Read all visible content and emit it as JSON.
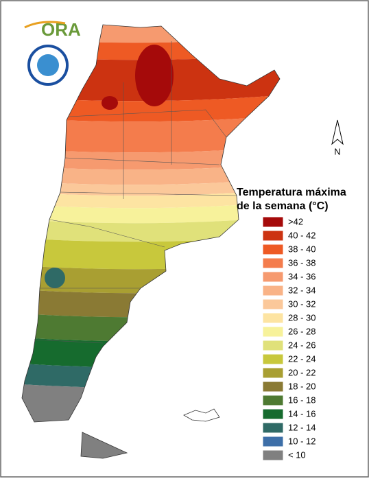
{
  "logo": {
    "text": "ORA"
  },
  "north": "N",
  "legend": {
    "title": [
      "Temperatura máxima",
      "de la semana (°C)"
    ],
    "items": [
      {
        "label": ">42",
        "color": "#a50a0a"
      },
      {
        "label": "40 - 42",
        "color": "#cc3311"
      },
      {
        "label": "38 - 40",
        "color": "#ee5a24"
      },
      {
        "label": "36 - 38",
        "color": "#f47c4c"
      },
      {
        "label": "34 - 36",
        "color": "#f69a6f"
      },
      {
        "label": "32 - 34",
        "color": "#f9b387"
      },
      {
        "label": "30 - 32",
        "color": "#fbc89a"
      },
      {
        "label": "28 - 30",
        "color": "#fde4a2"
      },
      {
        "label": "26 - 28",
        "color": "#f7f29b"
      },
      {
        "label": "24 - 26",
        "color": "#e0e17a"
      },
      {
        "label": "22 - 24",
        "color": "#c8c83c"
      },
      {
        "label": "20 - 22",
        "color": "#a99f32"
      },
      {
        "label": "18 - 20",
        "color": "#8a7a34"
      },
      {
        "label": "16 - 18",
        "color": "#4e7a32"
      },
      {
        "label": "14 - 16",
        "color": "#166b2e"
      },
      {
        "label": "12 - 14",
        "color": "#2f6a66"
      },
      {
        "label": "10 - 12",
        "color": "#3d6fa8"
      },
      {
        "label": "< 10",
        "color": "#808080"
      }
    ]
  }
}
